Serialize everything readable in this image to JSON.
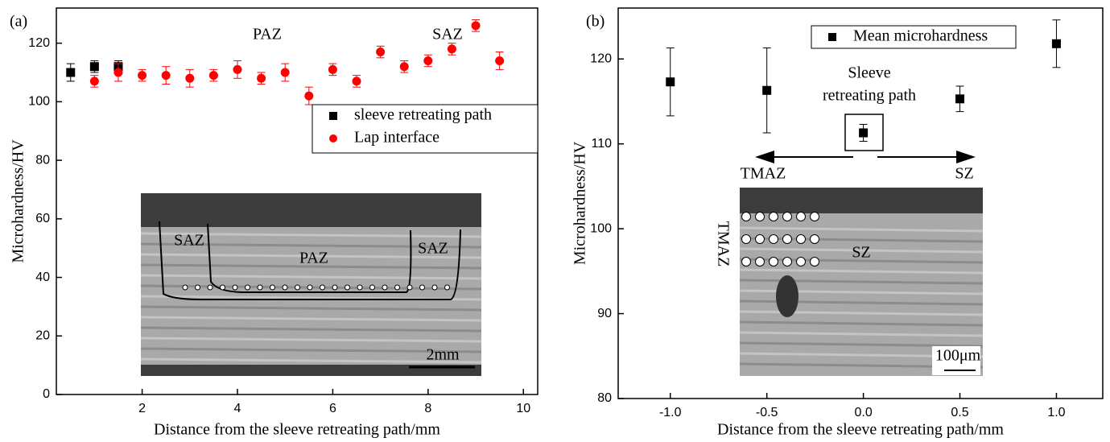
{
  "chart_data": [
    {
      "type": "scatter",
      "panel_label": "(a)",
      "x_label": "Distance from the sleeve retreating path/mm",
      "y_label": "Microhardness/HV",
      "xlim": [
        0.2,
        10.3
      ],
      "xticks": [
        2,
        4,
        6,
        8,
        10
      ],
      "ylim": [
        0,
        132
      ],
      "yticks": [
        0,
        20,
        40,
        60,
        80,
        100,
        120
      ],
      "legend": "right",
      "series": [
        {
          "name": "sleeve retreating path",
          "color": "#000000",
          "marker": "square",
          "x": [
            0.5,
            1,
            1.5
          ],
          "values": [
            110,
            112,
            112
          ],
          "errors": [
            3,
            2,
            2
          ]
        },
        {
          "name": "Lap interface",
          "color": "#ff0000",
          "marker": "circle",
          "x": [
            1,
            1.5,
            2,
            2.5,
            3,
            3.5,
            4,
            4.5,
            5,
            5.5,
            6,
            6.5,
            7,
            7.5,
            8,
            8.5,
            9,
            9.5
          ],
          "values": [
            107,
            110,
            109,
            109,
            108,
            109,
            111,
            108,
            110,
            102,
            111,
            107,
            117,
            112,
            114,
            118,
            126,
            114
          ],
          "errors": [
            2,
            3,
            2,
            3,
            3,
            2,
            3,
            2,
            3,
            3,
            2,
            2,
            2,
            2,
            2,
            2,
            2,
            3
          ]
        }
      ],
      "annotations": [
        "PAZ",
        "SAZ"
      ],
      "inset_labels": [
        "SAZ",
        "PAZ",
        "SAZ",
        "2mm"
      ]
    },
    {
      "type": "scatter",
      "panel_label": "(b)",
      "x_label": "Distance from the sleeve retreating path/mm",
      "y_label": "Microhardness/HV",
      "xlim": [
        -1.27,
        1.24
      ],
      "xticks": [
        {
          "value": -1,
          "label": "-1.0"
        },
        {
          "value": -0.5,
          "label": "-0.5"
        },
        {
          "value": 0,
          "label": "0.0"
        },
        {
          "value": 0.5,
          "label": "0.5"
        },
        {
          "value": 1,
          "label": "1.0"
        }
      ],
      "ylim": [
        80,
        126
      ],
      "yticks": [
        80,
        90,
        100,
        110,
        120
      ],
      "legend": "top",
      "series": [
        {
          "name": "Mean microhardness",
          "color": "#000000",
          "marker": "square",
          "x": [
            -1,
            -0.5,
            0,
            0.5,
            1
          ],
          "values": [
            117.3,
            116.3,
            111.3,
            115.3,
            121.8
          ],
          "errors": [
            4,
            5,
            1,
            1.5,
            2.8
          ]
        }
      ],
      "annotations": [
        "Sleeve",
        "retreating path",
        "TMAZ",
        "SZ"
      ],
      "inset_labels": [
        "TMAZ",
        "SZ",
        "100μm"
      ]
    }
  ]
}
